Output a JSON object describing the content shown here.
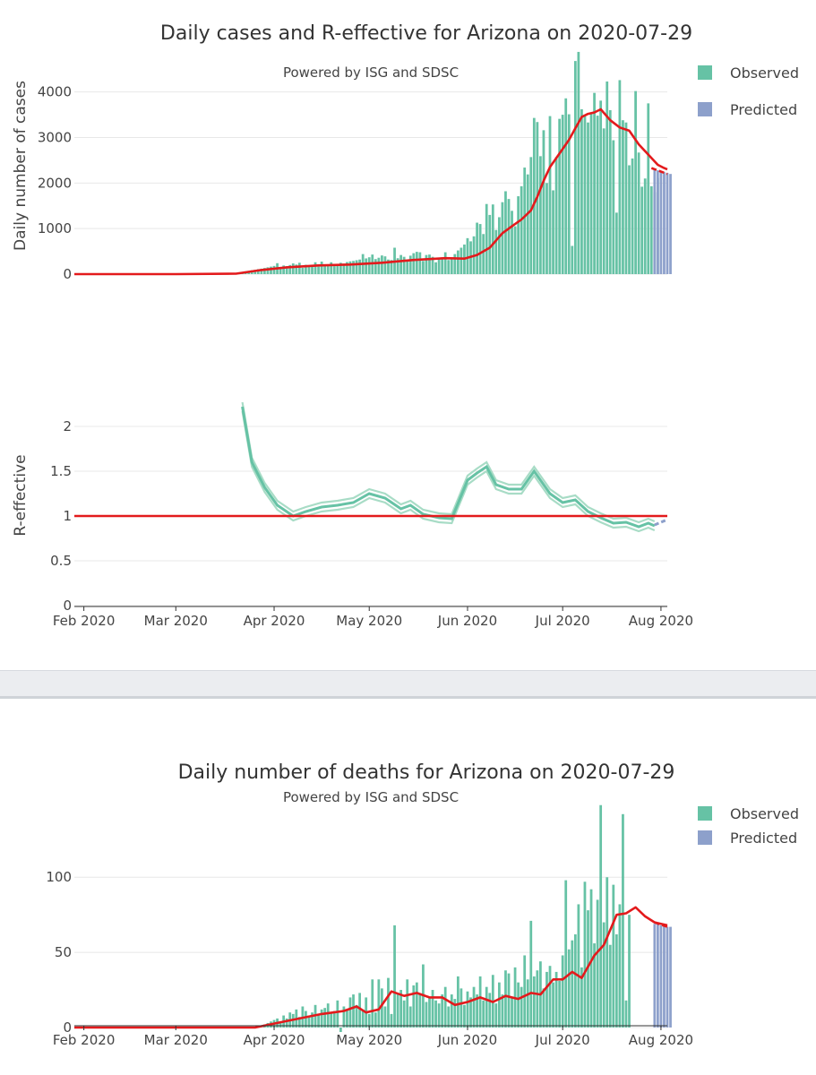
{
  "palette": {
    "observed": "#66c2a5",
    "predicted": "#8da0cb",
    "trend": "#e31a1c",
    "reff_band": "#a8dcc6",
    "reff_line": "#66c2a5",
    "reff_pred": "#8da0cb",
    "grid": "#e8e8e8",
    "axis": "#444444"
  },
  "chart_data": [
    {
      "type": "bar",
      "title": "Daily cases and R-effective for Arizona on 2020-07-29",
      "subtitle": "Powered by ISG and SDSC",
      "xlabel": "",
      "ylabel": "Daily number of cases",
      "ylim": [
        0,
        4800
      ],
      "yticks": [
        0,
        1000,
        2000,
        3000,
        4000
      ],
      "xlim": [
        "2020-01-29",
        "2020-08-03"
      ],
      "xticks": [
        {
          "date": "2020-02-01",
          "label": "Feb 2020"
        },
        {
          "date": "2020-03-01",
          "label": "Mar 2020"
        },
        {
          "date": "2020-04-01",
          "label": "Apr 2020"
        },
        {
          "date": "2020-05-01",
          "label": "May 2020"
        },
        {
          "date": "2020-06-01",
          "label": "Jun 2020"
        },
        {
          "date": "2020-07-01",
          "label": "Jul 2020"
        },
        {
          "date": "2020-08-01",
          "label": "Aug 2020"
        }
      ],
      "legend": {
        "position": "top-right",
        "entries": [
          "Observed",
          "Predicted"
        ]
      },
      "series": [
        {
          "name": "Observed",
          "kind": "bar",
          "start_date": "2020-03-22",
          "values": [
            45,
            60,
            70,
            85,
            95,
            110,
            120,
            135,
            150,
            165,
            180,
            240,
            130,
            190,
            175,
            200,
            235,
            210,
            250,
            140,
            205,
            180,
            200,
            260,
            165,
            275,
            190,
            210,
            260,
            175,
            200,
            250,
            230,
            265,
            280,
            290,
            305,
            320,
            440,
            345,
            370,
            430,
            330,
            360,
            410,
            390,
            320,
            310,
            580,
            350,
            420,
            380,
            280,
            405,
            460,
            490,
            480,
            290,
            420,
            430,
            380,
            260,
            360,
            370,
            480,
            310,
            350,
            440,
            520,
            580,
            650,
            790,
            720,
            830,
            1130,
            1100,
            880,
            1540,
            1300,
            1530,
            970,
            1250,
            1580,
            1820,
            1650,
            1390,
            1050,
            1710,
            1930,
            2340,
            2190,
            2570,
            3430,
            3340,
            2590,
            3160,
            2000,
            3470,
            1840,
            2570,
            3410,
            3500,
            3860,
            3510,
            620,
            4680,
            4880,
            3620,
            3470,
            3330,
            3540,
            3980,
            3480,
            3810,
            3200,
            4230,
            3600,
            2940,
            1350,
            4260,
            3380,
            3330,
            2390,
            2540,
            4020,
            2670,
            1920,
            2100,
            3750,
            1930,
            1800,
            2110
          ],
          "color": "#66c2a5"
        },
        {
          "name": "Predicted",
          "kind": "bar",
          "start_date": "2020-07-30",
          "values": [
            2300,
            2280,
            2260,
            2240,
            2220,
            2200
          ],
          "color": "#8da0cb"
        },
        {
          "name": "",
          "kind": "line",
          "color": "#e31a1c",
          "points": [
            [
              "2020-01-29",
              0
            ],
            [
              "2020-03-01",
              0
            ],
            [
              "2020-03-20",
              10
            ],
            [
              "2020-03-28",
              90
            ],
            [
              "2020-04-05",
              150
            ],
            [
              "2020-04-15",
              190
            ],
            [
              "2020-04-25",
              210
            ],
            [
              "2020-05-05",
              250
            ],
            [
              "2020-05-15",
              310
            ],
            [
              "2020-05-25",
              350
            ],
            [
              "2020-05-31",
              340
            ],
            [
              "2020-06-04",
              420
            ],
            [
              "2020-06-08",
              580
            ],
            [
              "2020-06-12",
              900
            ],
            [
              "2020-06-15",
              1050
            ],
            [
              "2020-06-18",
              1200
            ],
            [
              "2020-06-21",
              1400
            ],
            [
              "2020-06-23",
              1700
            ],
            [
              "2020-06-25",
              2050
            ],
            [
              "2020-06-27",
              2350
            ],
            [
              "2020-06-29",
              2550
            ],
            [
              "2020-07-01",
              2750
            ],
            [
              "2020-07-03",
              2950
            ],
            [
              "2020-07-05",
              3200
            ],
            [
              "2020-07-07",
              3450
            ],
            [
              "2020-07-09",
              3520
            ],
            [
              "2020-07-11",
              3550
            ],
            [
              "2020-07-13",
              3620
            ],
            [
              "2020-07-16",
              3380
            ],
            [
              "2020-07-19",
              3220
            ],
            [
              "2020-07-22",
              3150
            ],
            [
              "2020-07-25",
              2850
            ],
            [
              "2020-07-27",
              2700
            ],
            [
              "2020-07-29",
              2550
            ],
            [
              "2020-07-31",
              2400
            ],
            [
              "2020-08-02",
              2330
            ],
            [
              "2020-08-03",
              2300
            ]
          ]
        },
        {
          "name": "",
          "kind": "line-dashed",
          "color": "#e31a1c",
          "points": [
            [
              "2020-07-29",
              2330
            ],
            [
              "2020-08-03",
              2200
            ]
          ]
        }
      ]
    },
    {
      "type": "line",
      "title": "",
      "xlabel": "",
      "ylabel": "R-effective",
      "ylim": [
        0,
        2.45
      ],
      "yticks": [
        0,
        0.5,
        1,
        1.5,
        2
      ],
      "ytick_labels": [
        "0",
        "0.5",
        "1",
        "1.5",
        "2"
      ],
      "xlim": [
        "2020-01-29",
        "2020-08-03"
      ],
      "xticks": [
        {
          "date": "2020-02-01",
          "label": "Feb 2020"
        },
        {
          "date": "2020-03-01",
          "label": "Mar 2020"
        },
        {
          "date": "2020-04-01",
          "label": "Apr 2020"
        },
        {
          "date": "2020-05-01",
          "label": "May 2020"
        },
        {
          "date": "2020-06-01",
          "label": "Jun 2020"
        },
        {
          "date": "2020-07-01",
          "label": "Jul 2020"
        },
        {
          "date": "2020-08-01",
          "label": "Aug 2020"
        }
      ],
      "reference_line": 1,
      "series": [
        {
          "name": "",
          "kind": "line",
          "points": [
            [
              "2020-03-22",
              2.22
            ],
            [
              "2020-03-25",
              1.6
            ],
            [
              "2020-03-29",
              1.32
            ],
            [
              "2020-04-02",
              1.12
            ],
            [
              "2020-04-07",
              1.0
            ],
            [
              "2020-04-11",
              1.05
            ],
            [
              "2020-04-16",
              1.1
            ],
            [
              "2020-04-21",
              1.12
            ],
            [
              "2020-04-26",
              1.15
            ],
            [
              "2020-05-01",
              1.25
            ],
            [
              "2020-05-06",
              1.2
            ],
            [
              "2020-05-11",
              1.08
            ],
            [
              "2020-05-14",
              1.12
            ],
            [
              "2020-05-18",
              1.02
            ],
            [
              "2020-05-23",
              0.98
            ],
            [
              "2020-05-27",
              0.97
            ],
            [
              "2020-06-01",
              1.4
            ],
            [
              "2020-06-04",
              1.48
            ],
            [
              "2020-06-07",
              1.55
            ],
            [
              "2020-06-10",
              1.35
            ],
            [
              "2020-06-14",
              1.3
            ],
            [
              "2020-06-18",
              1.3
            ],
            [
              "2020-06-22",
              1.5
            ],
            [
              "2020-06-27",
              1.25
            ],
            [
              "2020-07-01",
              1.15
            ],
            [
              "2020-07-05",
              1.18
            ],
            [
              "2020-07-09",
              1.05
            ],
            [
              "2020-07-13",
              0.98
            ],
            [
              "2020-07-17",
              0.92
            ],
            [
              "2020-07-21",
              0.93
            ],
            [
              "2020-07-25",
              0.88
            ],
            [
              "2020-07-28",
              0.92
            ],
            [
              "2020-07-30",
              0.89
            ]
          ],
          "band_offset": 0.05
        },
        {
          "name": "",
          "kind": "line-pred",
          "points": [
            [
              "2020-07-30",
              0.9
            ],
            [
              "2020-08-01",
              0.93
            ],
            [
              "2020-08-03",
              0.96
            ]
          ]
        }
      ]
    },
    {
      "type": "bar",
      "title": "Daily number of deaths for Arizona on 2020-07-29",
      "subtitle": "Powered by ISG and SDSC",
      "xlabel": "",
      "ylabel": "",
      "ylim": [
        -3,
        155
      ],
      "yticks": [
        0,
        50,
        100
      ],
      "xlim": [
        "2020-01-29",
        "2020-08-03"
      ],
      "xticks": [
        {
          "date": "2020-02-01",
          "label": "Feb 2020"
        },
        {
          "date": "2020-03-01",
          "label": "Mar 2020"
        },
        {
          "date": "2020-04-01",
          "label": "Apr 2020"
        },
        {
          "date": "2020-05-01",
          "label": "May 2020"
        },
        {
          "date": "2020-06-01",
          "label": "Jun 2020"
        },
        {
          "date": "2020-07-01",
          "label": "Jul 2020"
        },
        {
          "date": "2020-08-01",
          "label": "Aug 2020"
        }
      ],
      "legend": {
        "position": "top-right",
        "entries": [
          "Observed",
          "Predicted"
        ]
      },
      "series": [
        {
          "name": "Observed",
          "kind": "bar",
          "start_date": "2020-03-29",
          "values": [
            2,
            3,
            4,
            5,
            6,
            4,
            8,
            6,
            10,
            9,
            12,
            7,
            14,
            11,
            8,
            10,
            15,
            9,
            12,
            13,
            16,
            10,
            11,
            18,
            -3,
            14,
            12,
            20,
            22,
            15,
            23,
            12,
            20,
            9,
            32,
            10,
            32,
            26,
            14,
            33,
            9,
            68,
            22,
            25,
            18,
            32,
            14,
            28,
            30,
            22,
            42,
            17,
            20,
            25,
            18,
            16,
            22,
            27,
            14,
            22,
            19,
            34,
            26,
            15,
            24,
            20,
            27,
            22,
            34,
            18,
            27,
            23,
            35,
            16,
            30,
            22,
            38,
            36,
            20,
            40,
            30,
            27,
            48,
            32,
            71,
            34,
            38,
            44,
            26,
            37,
            41,
            30,
            37,
            31,
            48,
            98,
            52,
            58,
            62,
            82,
            40,
            97,
            78,
            92,
            56,
            85,
            148,
            70,
            100,
            55,
            95,
            62,
            82,
            142,
            18,
            75
          ],
          "color": "#66c2a5"
        },
        {
          "name": "Predicted",
          "kind": "bar",
          "start_date": "2020-07-30",
          "values": [
            69,
            69,
            68,
            68,
            67,
            67
          ],
          "color": "#8da0cb"
        },
        {
          "name": "",
          "kind": "line",
          "color": "#e31a1c",
          "points": [
            [
              "2020-01-29",
              0
            ],
            [
              "2020-03-01",
              0
            ],
            [
              "2020-03-26",
              0
            ],
            [
              "2020-04-02",
              3
            ],
            [
              "2020-04-09",
              6
            ],
            [
              "2020-04-16",
              9
            ],
            [
              "2020-04-23",
              11
            ],
            [
              "2020-04-27",
              14
            ],
            [
              "2020-04-30",
              10
            ],
            [
              "2020-05-04",
              12
            ],
            [
              "2020-05-08",
              24
            ],
            [
              "2020-05-12",
              21
            ],
            [
              "2020-05-16",
              23
            ],
            [
              "2020-05-20",
              20
            ],
            [
              "2020-05-24",
              20
            ],
            [
              "2020-05-28",
              15
            ],
            [
              "2020-06-01",
              17
            ],
            [
              "2020-06-05",
              20
            ],
            [
              "2020-06-09",
              17
            ],
            [
              "2020-06-13",
              21
            ],
            [
              "2020-06-17",
              19
            ],
            [
              "2020-06-21",
              23
            ],
            [
              "2020-06-24",
              22
            ],
            [
              "2020-06-28",
              32
            ],
            [
              "2020-07-01",
              32
            ],
            [
              "2020-07-04",
              37
            ],
            [
              "2020-07-07",
              33
            ],
            [
              "2020-07-11",
              48
            ],
            [
              "2020-07-14",
              55
            ],
            [
              "2020-07-18",
              75
            ],
            [
              "2020-07-21",
              76
            ],
            [
              "2020-07-24",
              80
            ],
            [
              "2020-07-27",
              74
            ],
            [
              "2020-07-30",
              70
            ],
            [
              "2020-08-03",
              68
            ]
          ]
        },
        {
          "name": "",
          "kind": "line-dashed",
          "color": "#e31a1c",
          "points": [
            [
              "2020-07-30",
              70
            ],
            [
              "2020-08-03",
              67
            ]
          ]
        }
      ]
    }
  ]
}
